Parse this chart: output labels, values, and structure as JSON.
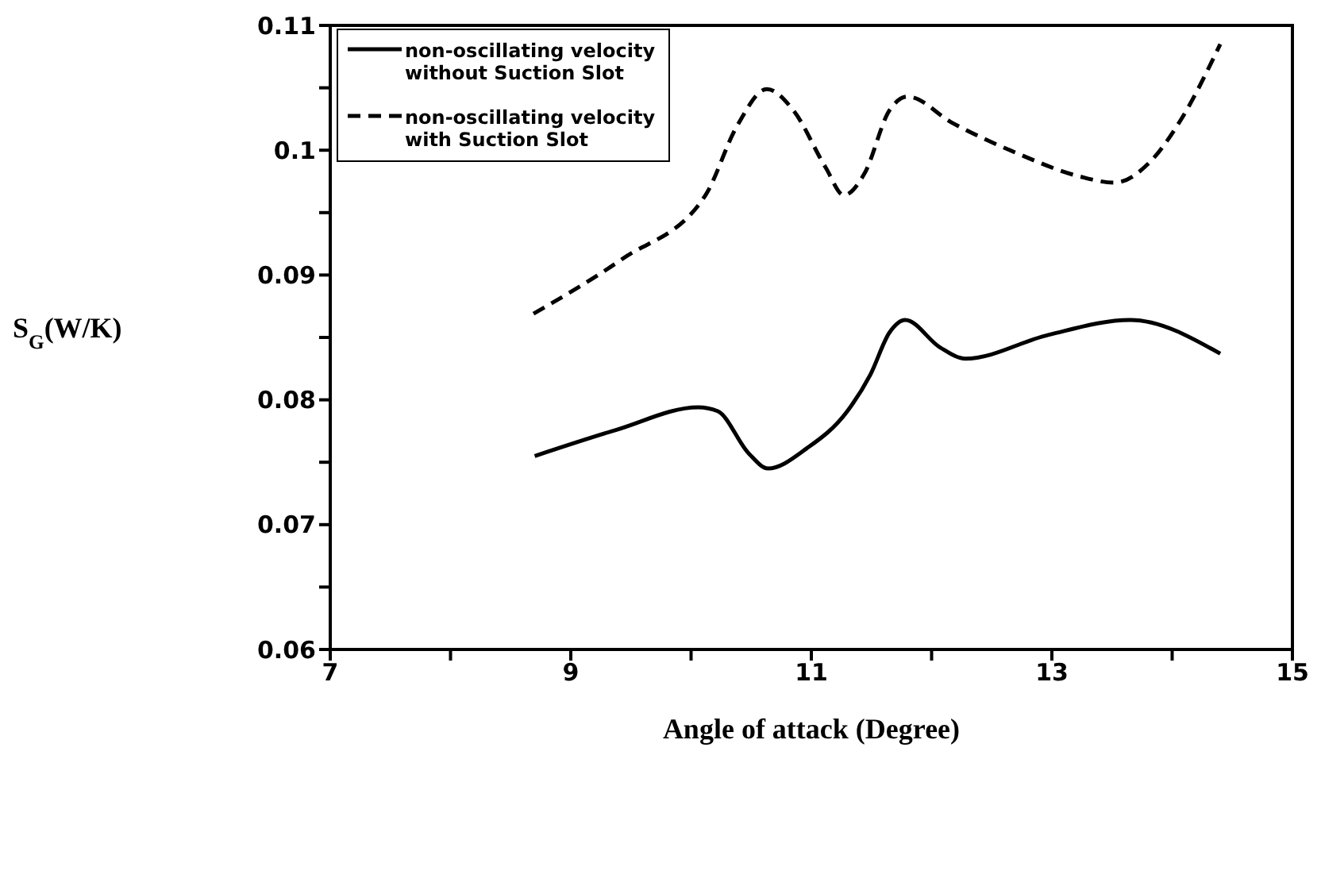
{
  "chart_data": {
    "type": "line",
    "xlabel": "Angle of attack (Degree)",
    "ylabel": "S$_{G}$(W/K)",
    "xlim": [
      7,
      15
    ],
    "xticks": [
      7,
      {
        "value": 8,
        "label": null
      },
      9,
      {
        "value": 10,
        "label": null
      },
      11,
      {
        "value": 12,
        "label": null
      },
      13,
      {
        "value": 14,
        "label": null
      },
      15
    ],
    "ylim": [
      0.06,
      0.11
    ],
    "yticks": [
      0.06,
      {
        "value": 0.065,
        "label": null
      },
      0.07,
      {
        "value": 0.075,
        "label": null
      },
      0.08,
      {
        "value": 0.085,
        "label": null
      },
      0.09,
      {
        "value": 0.095,
        "label": null
      },
      0.1,
      {
        "value": 0.105,
        "label": null
      },
      0.11
    ],
    "legend": "top left",
    "marker": "none",
    "series": [
      {
        "name": "non-oscillating velocity without Suction Slot",
        "color": "#000000",
        "line_style": "solid",
        "x": [
          8.7,
          9.38,
          10.06,
          10.22,
          10.48,
          10.64,
          10.96,
          11.3,
          11.49,
          11.65,
          11.78,
          12.07,
          12.28,
          12.97,
          13.65,
          14.4
        ],
        "values": [
          0.0755,
          0.0776,
          0.0794,
          0.0791,
          0.0757,
          0.0745,
          0.0761,
          0.0791,
          0.082,
          0.0854,
          0.0864,
          0.0842,
          0.0833,
          0.0852,
          0.0864,
          0.0837
        ]
      },
      {
        "name": "non-oscillating velocity with Suction Slot",
        "color": "#000000",
        "line_style": "dashed",
        "x": [
          8.69,
          9.43,
          10.12,
          10.38,
          10.63,
          10.85,
          11.12,
          11.27,
          11.44,
          11.65,
          11.8,
          12.17,
          12.7,
          13.23,
          13.52,
          13.81,
          14.07,
          14.4
        ],
        "values": [
          0.0869,
          0.0913,
          0.0964,
          0.1019,
          0.1049,
          0.1032,
          0.0986,
          0.0964,
          0.0981,
          0.1032,
          0.1043,
          0.1022,
          0.0998,
          0.0979,
          0.0974,
          0.099,
          0.1024,
          0.1085
        ]
      }
    ]
  }
}
